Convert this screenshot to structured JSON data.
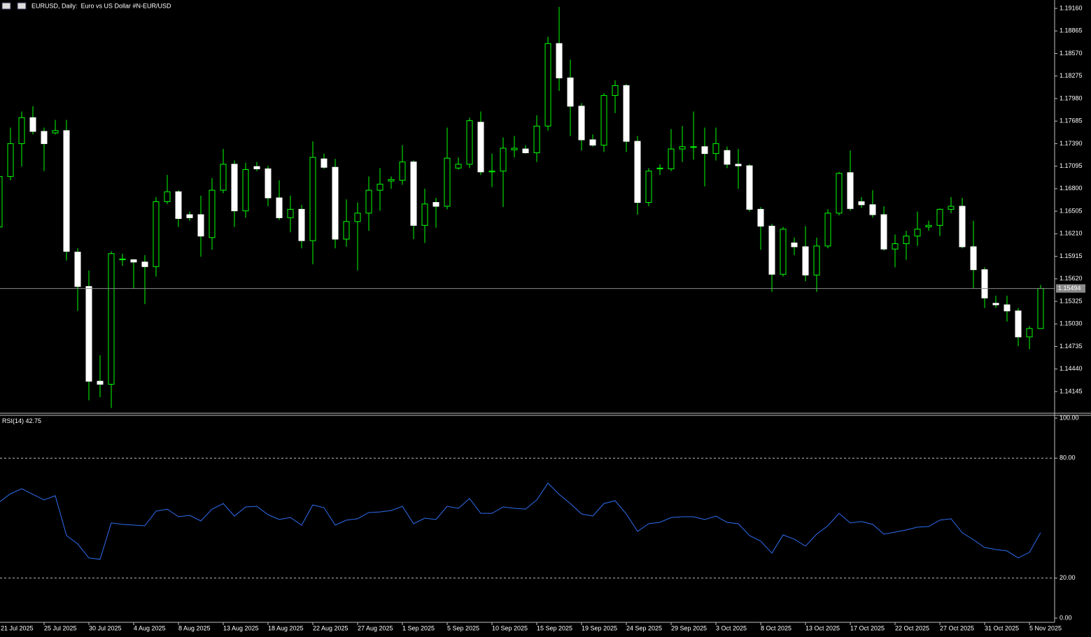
{
  "chart_data": [
    {
      "type": "candlestick",
      "title": "EURUSD, Daily:  Euro vs US Dollar #N-EUR/USD",
      "categories": [
        "21 Jul 2025",
        null,
        null,
        null,
        "25 Jul 2025",
        null,
        null,
        null,
        "30 Jul 2025",
        null,
        null,
        null,
        "4 Aug 2025",
        null,
        null,
        null,
        "8 Aug 2025",
        null,
        null,
        null,
        "13 Aug 2025",
        null,
        null,
        null,
        "18 Aug 2025",
        null,
        null,
        null,
        "22 Aug 2025",
        null,
        null,
        null,
        "27 Aug 2025",
        null,
        null,
        null,
        "1 Sep 2025",
        null,
        null,
        null,
        "5 Sep 2025",
        null,
        null,
        null,
        "10 Sep 2025",
        null,
        null,
        null,
        "15 Sep 2025",
        null,
        null,
        null,
        "19 Sep 2025",
        null,
        null,
        null,
        "24 Sep 2025",
        null,
        null,
        null,
        "29 Sep 2025",
        null,
        null,
        null,
        "3 Oct 2025",
        null,
        null,
        null,
        "8 Oct 2025",
        null,
        null,
        null,
        "13 Oct 2025",
        null,
        null,
        null,
        "17 Oct 2025",
        null,
        null,
        null,
        "22 Oct 2025",
        null,
        null,
        null,
        "27 Oct 2025",
        null,
        null,
        null,
        "31 Oct 2025",
        null,
        null,
        null,
        "5 Nov 2025",
        null
      ],
      "open": [
        1.163,
        1.1696,
        1.1739,
        1.1773,
        1.1755,
        1.1753,
        1.1756,
        1.1597,
        1.1552,
        1.1428,
        1.1424,
        1.1587,
        1.1587,
        1.1584,
        1.1578,
        1.1663,
        1.1676,
        1.1646,
        1.1646,
        1.1616,
        1.1678,
        1.1712,
        1.1651,
        1.1709,
        1.1706,
        1.1668,
        1.1642,
        1.1653,
        1.1612,
        1.1719,
        1.1708,
        1.1614,
        1.1637,
        1.1648,
        1.1678,
        1.169,
        1.1691,
        1.1715,
        1.1632,
        1.1662,
        1.1657,
        1.1707,
        1.1712,
        1.1767,
        1.1702,
        1.1703,
        1.1731,
        1.1732,
        1.1727,
        1.1762,
        1.187,
        1.1825,
        1.1788,
        1.1744,
        1.1737,
        1.1802,
        1.1815,
        1.1742,
        1.1662,
        1.1706,
        1.1706,
        1.1732,
        1.1734,
        1.1735,
        1.1726,
        1.173,
        1.1712,
        1.171,
        1.1653,
        1.1631,
        1.1568,
        1.1609,
        1.1604,
        1.1567,
        1.1605,
        1.1648,
        1.1701,
        1.1663,
        1.1659,
        1.1646,
        1.1601,
        1.1608,
        1.1618,
        1.163,
        1.1632,
        1.1653,
        1.1657,
        1.1604,
        1.1574,
        1.153,
        1.1528,
        1.152,
        1.1486,
        1.1497
      ],
      "high": [
        1.1707,
        1.176,
        1.1781,
        1.1788,
        1.176,
        1.177,
        1.177,
        1.1602,
        1.1573,
        1.1462,
        1.1598,
        1.1595,
        1.1588,
        1.1593,
        1.1669,
        1.1698,
        1.1678,
        1.165,
        1.1671,
        1.1694,
        1.1732,
        1.1717,
        1.1714,
        1.1715,
        1.171,
        1.1691,
        1.1671,
        1.1659,
        1.1742,
        1.1726,
        1.1719,
        1.1666,
        1.1662,
        1.1696,
        1.1707,
        1.1696,
        1.1737,
        1.1717,
        1.168,
        1.1668,
        1.176,
        1.1721,
        1.1773,
        1.1781,
        1.1726,
        1.1747,
        1.1749,
        1.1737,
        1.1776,
        1.1879,
        1.1918,
        1.1849,
        1.1792,
        1.1751,
        1.1805,
        1.1822,
        1.1817,
        1.1749,
        1.1707,
        1.1712,
        1.1758,
        1.1762,
        1.1781,
        1.176,
        1.176,
        1.1735,
        1.1732,
        1.1712,
        1.1656,
        1.1634,
        1.163,
        1.1616,
        1.1631,
        1.1616,
        1.1653,
        1.1702,
        1.173,
        1.1669,
        1.1678,
        1.1657,
        1.162,
        1.1625,
        1.165,
        1.1638,
        1.1654,
        1.1669,
        1.1668,
        1.1638,
        1.1577,
        1.154,
        1.154,
        1.1524,
        1.15,
        1.1554
      ],
      "low": [
        1.163,
        1.1691,
        1.1709,
        1.1751,
        1.1703,
        1.1751,
        1.1586,
        1.152,
        1.1403,
        1.1407,
        1.1393,
        1.1579,
        1.1549,
        1.1529,
        1.1565,
        1.166,
        1.163,
        1.1638,
        1.1591,
        1.16,
        1.1674,
        1.163,
        1.1642,
        1.1703,
        1.1657,
        1.1639,
        1.1623,
        1.1602,
        1.1581,
        1.1706,
        1.1602,
        1.1604,
        1.1573,
        1.1625,
        1.1651,
        1.168,
        1.1685,
        1.1614,
        1.1609,
        1.1629,
        1.1653,
        1.1705,
        1.1707,
        1.1698,
        1.1682,
        1.1656,
        1.1721,
        1.1726,
        1.1715,
        1.1756,
        1.1808,
        1.1749,
        1.173,
        1.1735,
        1.1728,
        1.1779,
        1.1728,
        1.1646,
        1.1657,
        1.1698,
        1.1703,
        1.1715,
        1.1718,
        1.1683,
        1.1717,
        1.1707,
        1.168,
        1.165,
        1.16,
        1.1545,
        1.1565,
        1.1593,
        1.1559,
        1.1545,
        1.1602,
        1.1645,
        1.1651,
        1.1655,
        1.1642,
        1.1599,
        1.1577,
        1.1587,
        1.1605,
        1.1625,
        1.1618,
        1.1648,
        1.1602,
        1.1549,
        1.1524,
        1.1524,
        1.1506,
        1.1474,
        1.147,
        1.1497
      ],
      "close": [
        1.1696,
        1.1739,
        1.1773,
        1.1755,
        1.1739,
        1.1756,
        1.1598,
        1.1552,
        1.1428,
        1.1424,
        1.1595,
        1.1588,
        1.1584,
        1.1578,
        1.1663,
        1.1676,
        1.1641,
        1.1642,
        1.1618,
        1.1678,
        1.1712,
        1.1651,
        1.1705,
        1.1706,
        1.1668,
        1.1642,
        1.1653,
        1.1612,
        1.1721,
        1.1708,
        1.1614,
        1.1637,
        1.1648,
        1.1678,
        1.1686,
        1.1692,
        1.1715,
        1.1632,
        1.166,
        1.1657,
        1.172,
        1.1712,
        1.1769,
        1.1702,
        1.1703,
        1.1733,
        1.1733,
        1.1727,
        1.1762,
        1.187,
        1.1825,
        1.1788,
        1.1744,
        1.1737,
        1.1802,
        1.1815,
        1.1742,
        1.1662,
        1.1703,
        1.1707,
        1.1732,
        1.1735,
        1.1735,
        1.1726,
        1.1739,
        1.1712,
        1.171,
        1.1653,
        1.1631,
        1.1568,
        1.1627,
        1.1604,
        1.1567,
        1.1605,
        1.1648,
        1.17,
        1.1654,
        1.1659,
        1.1646,
        1.1601,
        1.1608,
        1.1618,
        1.1627,
        1.1632,
        1.1653,
        1.1657,
        1.1604,
        1.1574,
        1.1537,
        1.1528,
        1.152,
        1.1486,
        1.1497,
        1.15494
      ],
      "bull_color": "#00ff00",
      "bear_color": "#ffffff",
      "ylim": [
        1.1387,
        1.1927
      ],
      "yticks": [
        {
          "value": 1.1916,
          "label": "1.19160"
        },
        {
          "value": 1.18865,
          "label": "1.18865"
        },
        {
          "value": 1.1857,
          "label": "1.18570"
        },
        {
          "value": 1.18275,
          "label": "1.18275"
        },
        {
          "value": 1.1798,
          "label": "1.17980"
        },
        {
          "value": 1.17685,
          "label": "1.17685"
        },
        {
          "value": 1.1739,
          "label": "1.17390"
        },
        {
          "value": 1.17095,
          "label": "1.17095"
        },
        {
          "value": 1.168,
          "label": "1.16800"
        },
        {
          "value": 1.16505,
          "label": "1.16505"
        },
        {
          "value": 1.1621,
          "label": "1.16210"
        },
        {
          "value": 1.15915,
          "label": "1.15915"
        },
        {
          "value": 1.1562,
          "label": "1.15620"
        },
        {
          "value": 1.15325,
          "label": "1.15325"
        },
        {
          "value": 1.1503,
          "label": "1.15030"
        },
        {
          "value": 1.14735,
          "label": "1.14735"
        },
        {
          "value": 1.1444,
          "label": "1.14440"
        },
        {
          "value": 1.14145,
          "label": "1.14145"
        }
      ],
      "current_price": {
        "value": 1.15494,
        "label": "1.15494"
      }
    },
    {
      "type": "line",
      "title": "RSI(14)",
      "values": [
        58.0,
        62.2,
        64.7,
        61.9,
        59.1,
        61.2,
        41.3,
        37.1,
        30.1,
        29.4,
        47.6,
        46.9,
        46.5,
        46.2,
        53.5,
        54.5,
        50.7,
        51.4,
        48.6,
        54.5,
        57.3,
        51.0,
        55.6,
        55.9,
        51.7,
        49.3,
        50.3,
        46.5,
        56.6,
        55.2,
        46.5,
        49.0,
        49.7,
        52.8,
        53.1,
        53.8,
        55.9,
        47.2,
        50.0,
        49.3,
        55.9,
        54.9,
        59.8,
        52.4,
        52.4,
        55.6,
        54.9,
        54.5,
        59.1,
        67.5,
        61.9,
        57.3,
        52.1,
        51.0,
        57.3,
        58.7,
        52.1,
        43.4,
        47.2,
        47.9,
        50.3,
        50.7,
        50.7,
        49.3,
        51.0,
        47.9,
        47.2,
        41.3,
        38.5,
        32.5,
        41.6,
        39.5,
        36.0,
        42.0,
        46.2,
        52.4,
        47.6,
        48.3,
        46.9,
        42.0,
        43.0,
        44.1,
        45.5,
        45.8,
        49.0,
        49.7,
        42.7,
        39.2,
        35.3,
        34.3,
        33.6,
        30.1,
        32.9,
        42.75
      ],
      "color": "#2f6df0",
      "ylim": [
        0,
        100
      ],
      "yticks": [
        {
          "value": 100,
          "label": "100.00"
        },
        {
          "value": 80,
          "label": "80.00"
        },
        {
          "value": 20,
          "label": "20.00"
        },
        {
          "value": 0,
          "label": "0.00"
        }
      ],
      "levels": [
        80,
        20
      ]
    }
  ]
}
